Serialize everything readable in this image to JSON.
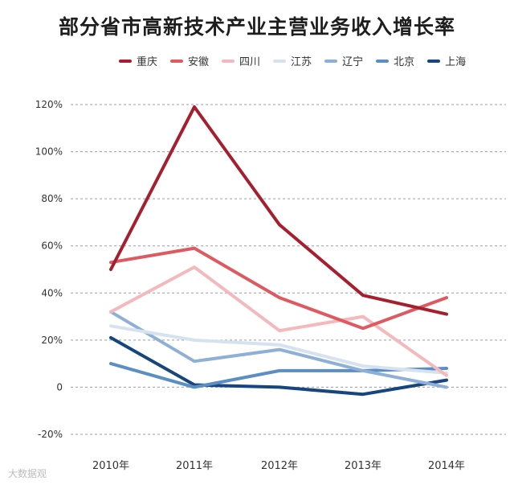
{
  "chart_data": {
    "type": "line",
    "title": "部分省市高新技术产业主营业务收入增长率",
    "categories": [
      "2010年",
      "2011年",
      "2012年",
      "2013年",
      "2014年"
    ],
    "y_ticks": [
      "120%",
      "100%",
      "80%",
      "60%",
      "40%",
      "20%",
      "0",
      "-20%"
    ],
    "y_tick_values": [
      120,
      100,
      80,
      60,
      40,
      20,
      0,
      -20
    ],
    "ylim": [
      -20,
      120
    ],
    "grid": "dashed horizontal",
    "legend_position": "top-right",
    "series": [
      {
        "name": "重庆",
        "color": "#a51f2e",
        "values": [
          50,
          119,
          69,
          39,
          31
        ]
      },
      {
        "name": "安徽",
        "color": "#dd5a61",
        "values": [
          53,
          59,
          38,
          25,
          38
        ]
      },
      {
        "name": "四川",
        "color": "#f4b9bc",
        "values": [
          32,
          51,
          24,
          30,
          5
        ]
      },
      {
        "name": "江苏",
        "color": "#d6e2f0",
        "values": [
          26,
          20,
          18,
          9,
          6
        ]
      },
      {
        "name": "辽宁",
        "color": "#8fb0d6",
        "values": [
          32,
          11,
          16,
          7,
          0
        ]
      },
      {
        "name": "北京",
        "color": "#5b8fc4",
        "values": [
          10,
          0,
          7,
          7,
          8
        ]
      },
      {
        "name": "上海",
        "color": "#17467f",
        "values": [
          21,
          1,
          0,
          -3,
          3
        ]
      }
    ]
  },
  "watermark": "大数据观"
}
